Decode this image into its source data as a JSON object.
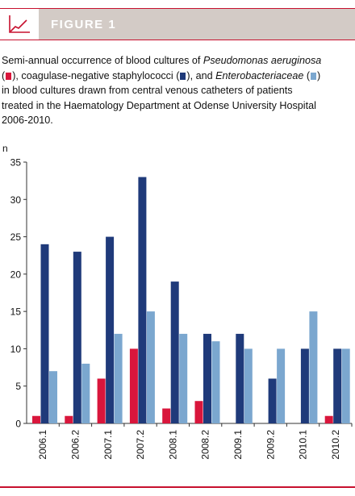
{
  "header": {
    "title": "FIGURE 1"
  },
  "caption": {
    "t1": "Semi-annual occurrence of blood cultures of ",
    "species1": "Pseudomonas aeruginosa",
    "t2": "(",
    "t3": "), coagulase-negative staphylococci (",
    "t4": "), and ",
    "species2": "Enterobacteriaceae",
    "t5": " (",
    "t6": ")",
    "line3": "in blood cultures drawn from central venous catheters of patients",
    "line4": "treated in the Haematology Department at Odense University Hospital",
    "line5": "2006-2010."
  },
  "colors": {
    "accent": "#c7102e",
    "pseudomonas": "#d9163c",
    "staphylococci": "#1f3a7a",
    "enterobacteriaceae": "#7ba7cf",
    "header_bg": "#d3cbc6"
  },
  "chart_data": {
    "type": "bar",
    "ylabel": "n",
    "ylim": [
      0,
      35
    ],
    "yticks": [
      0,
      5,
      10,
      15,
      20,
      25,
      30,
      35
    ],
    "grid": false,
    "categories": [
      "2006.1",
      "2006.2",
      "2007.1",
      "2007.2",
      "2008.1",
      "2008.2",
      "2009.1",
      "2009.2",
      "2010.1",
      "2010.2"
    ],
    "series": [
      {
        "key": "pseudomonas",
        "values": [
          1,
          1,
          6,
          10,
          2,
          3,
          0,
          0,
          0,
          1
        ]
      },
      {
        "key": "staphylococci",
        "values": [
          24,
          23,
          25,
          33,
          19,
          12,
          12,
          6,
          10,
          10
        ]
      },
      {
        "key": "enterobacteriaceae",
        "values": [
          7,
          8,
          12,
          15,
          12,
          11,
          10,
          10,
          15,
          10
        ]
      }
    ]
  }
}
